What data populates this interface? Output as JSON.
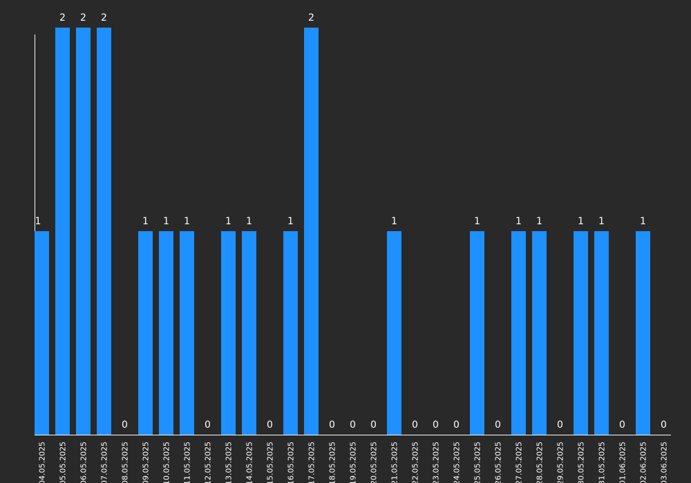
{
  "chart_data": {
    "type": "bar",
    "categories": [
      "04.05.2025",
      "05.05.2025",
      "06.05.2025",
      "07.05.2025",
      "08.05.2025",
      "09.05.2025",
      "10.05.2025",
      "11.05.2025",
      "12.05.2025",
      "13.05.2025",
      "14.05.2025",
      "15.05.2025",
      "16.05.2025",
      "17.05.2025",
      "18.05.2025",
      "19.05.2025",
      "20.05.2025",
      "21.05.2025",
      "22.05.2025",
      "23.05.2025",
      "24.05.2025",
      "25.05.2025",
      "26.05.2025",
      "27.05.2025",
      "28.05.2025",
      "29.05.2025",
      "30.05.2025",
      "31.05.2025",
      "01.06.2025",
      "02.06.2025",
      "03.06.2025"
    ],
    "values": [
      1,
      2,
      2,
      2,
      0,
      1,
      1,
      1,
      0,
      1,
      1,
      0,
      1,
      2,
      0,
      0,
      0,
      1,
      0,
      0,
      0,
      1,
      0,
      1,
      1,
      0,
      1,
      1,
      0,
      1,
      0
    ],
    "title": "",
    "xlabel": "",
    "ylabel": "",
    "ylim": [
      0,
      2
    ],
    "bar_color": "#1e90ff",
    "background_color": "#292929",
    "axis_color": "#ffffff",
    "grid": false,
    "data_labels": true
  }
}
